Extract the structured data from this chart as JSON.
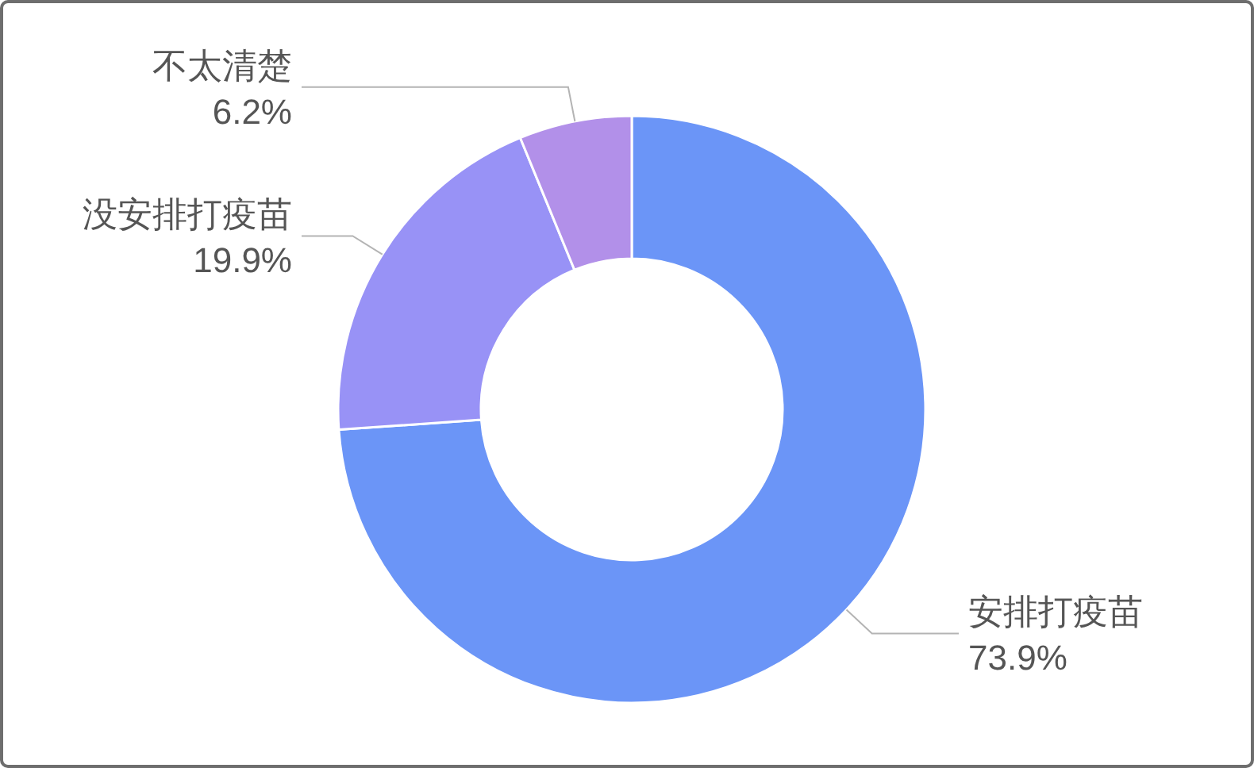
{
  "chart_data": {
    "type": "donut",
    "categories": [
      "安排打疫苗",
      "没安排打疫苗",
      "不太清楚"
    ],
    "values": [
      73.9,
      19.9,
      6.2
    ],
    "colors": [
      "#6b95f7",
      "#9892f6",
      "#b290e9"
    ],
    "value_labels": [
      "73.9%",
      "19.9%",
      "6.2%"
    ]
  }
}
